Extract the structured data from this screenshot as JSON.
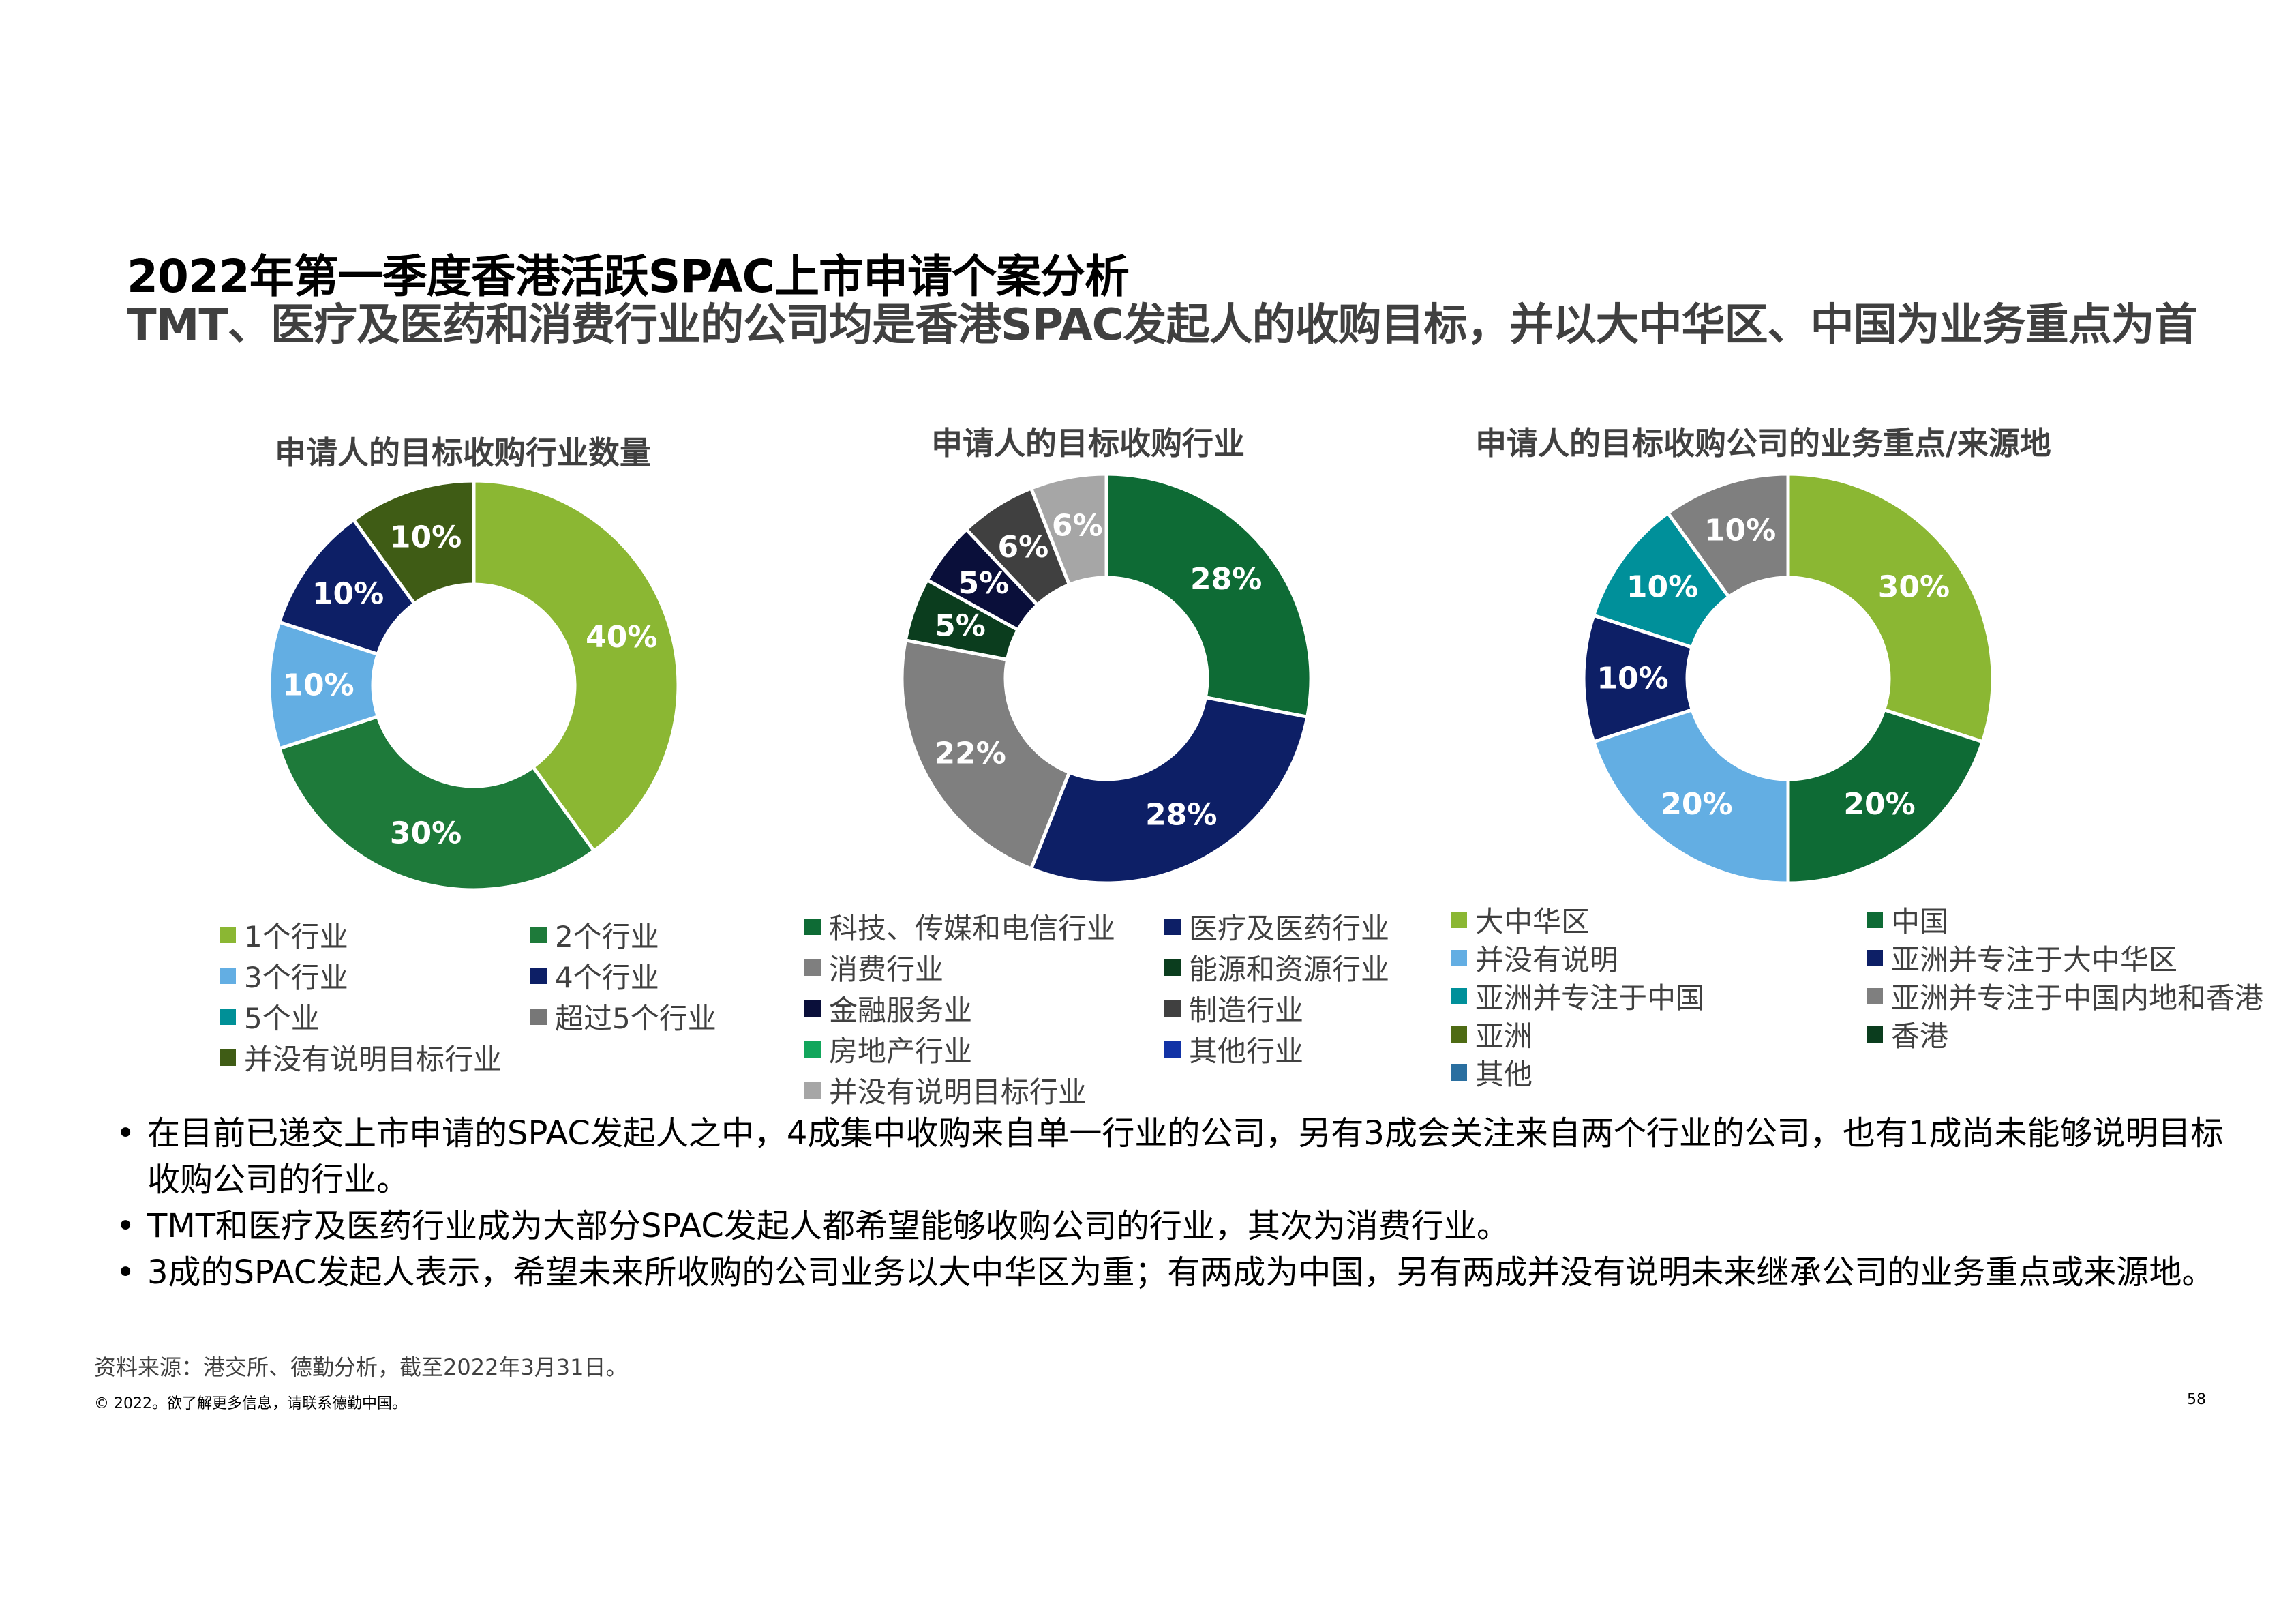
{
  "title": "2022年第一季度香港活跃SPAC上市申请个案分析",
  "subtitle": "TMT、医疗及医药和消费行业的公司均是香港SPAC发起人的收购目标，并以大中华区、中国为业务重点为首",
  "chart_data": [
    {
      "type": "pie",
      "title": "申请人的目标收购行业数量",
      "slices": [
        {
          "label": "1个行业",
          "value": 40,
          "display": "40%",
          "color": "#8BB733"
        },
        {
          "label": "2个行业",
          "value": 30,
          "display": "30%",
          "color": "#1E7A3A"
        },
        {
          "label": "3个行业",
          "value": 10,
          "display": "10%",
          "color": "#63AEE3"
        },
        {
          "label": "4个行业",
          "value": 10,
          "display": "10%",
          "color": "#0D1F66"
        },
        {
          "label": "5个业",
          "value": 0,
          "display": "",
          "color": "#009097"
        },
        {
          "label": "超过5个行业",
          "value": 0,
          "display": "",
          "color": "#777777"
        },
        {
          "label": "并没有说明目标行业",
          "value": 10,
          "display": "10%",
          "color": "#3F5C15"
        }
      ]
    },
    {
      "type": "pie",
      "title": "申请人的目标收购行业",
      "slices": [
        {
          "label": "科技、传媒和电信行业",
          "value": 28,
          "display": "28%",
          "color": "#0E6B35"
        },
        {
          "label": "医疗及医药行业",
          "value": 28,
          "display": "28%",
          "color": "#0D1F66"
        },
        {
          "label": "消费行业",
          "value": 22,
          "display": "22%",
          "color": "#7F7F7F"
        },
        {
          "label": "能源和资源行业",
          "value": 5,
          "display": "5%",
          "color": "#0B3D1E"
        },
        {
          "label": "金融服务业",
          "value": 5,
          "display": "5%",
          "color": "#0A0F3A"
        },
        {
          "label": "制造行业",
          "value": 6,
          "display": "6%",
          "color": "#404040"
        },
        {
          "label": "房地产行业",
          "value": 0,
          "display": "",
          "color": "#12A65C"
        },
        {
          "label": "其他行业",
          "value": 0,
          "display": "",
          "color": "#1233A6"
        },
        {
          "label": "并没有说明目标行业",
          "value": 6,
          "display": "6%",
          "color": "#A6A6A6"
        }
      ]
    },
    {
      "type": "pie",
      "title": "申请人的目标收购公司的业务重点/来源地",
      "slices": [
        {
          "label": "大中华区",
          "value": 30,
          "display": "30%",
          "color": "#8BB733"
        },
        {
          "label": "中国",
          "value": 20,
          "display": "20%",
          "color": "#0E6B35"
        },
        {
          "label": "并没有说明",
          "value": 20,
          "display": "20%",
          "color": "#63AEE3"
        },
        {
          "label": "亚洲并专注于大中华区",
          "value": 10,
          "display": "10%",
          "color": "#0D1F66"
        },
        {
          "label": "亚洲并专注于中国",
          "value": 10,
          "display": "10%",
          "color": "#00909A"
        },
        {
          "label": "亚洲并专注于中国内地和香港",
          "value": 10,
          "display": "10%",
          "color": "#7F7F7F"
        },
        {
          "label": "亚洲",
          "value": 0,
          "display": "",
          "color": "#4E6B14"
        },
        {
          "label": "香港",
          "value": 0,
          "display": "",
          "color": "#0B3D1E"
        },
        {
          "label": "其他",
          "value": 0,
          "display": "",
          "color": "#2A6FA0"
        }
      ]
    }
  ],
  "bullets": [
    "在目前已递交上市申请的SPAC发起人之中，4成集中收购来自单一行业的公司，另有3成会关注来自两个行业的公司，也有1成尚未能够说明目标收购公司的行业。",
    "TMT和医疗及医药行业成为大部分SPAC发起人都希望能够收购公司的行业，其次为消费行业。",
    "3成的SPAC发起人表示，希望未来所收购的公司业务以大中华区为重；有两成为中国，另有两成并没有说明未来继承公司的业务重点或来源地。"
  ],
  "bullet_symbol": "•",
  "source": "资料来源：港交所、德勤分析，截至2022年3月31日。",
  "copyright": "© 2022。欲了解更多信息，请联系德勤中国。",
  "page_number": "58"
}
